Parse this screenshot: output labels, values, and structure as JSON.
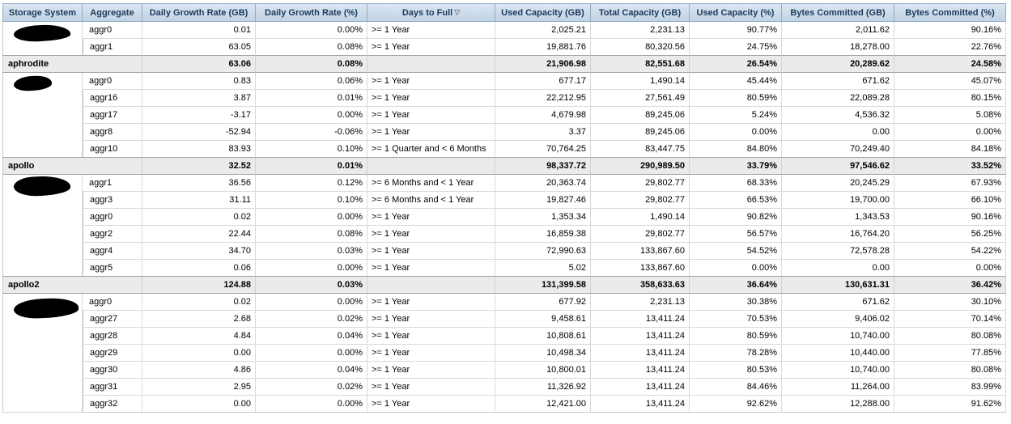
{
  "table": {
    "columns": [
      {
        "label": "Storage System"
      },
      {
        "label": "Aggregate"
      },
      {
        "label": "Daily Growth Rate (GB)"
      },
      {
        "label": "Daily Growth Rate (%)"
      },
      {
        "label": "Days to Full"
      },
      {
        "label": "Used Capacity (GB)"
      },
      {
        "label": "Total Capacity (GB)"
      },
      {
        "label": "Used Capacity (%)"
      },
      {
        "label": "Bytes Committed (GB)"
      },
      {
        "label": "Bytes Committed (%)"
      }
    ],
    "sort": {
      "column": "Days to Full",
      "direction": "descending",
      "icon": "▽"
    },
    "groups": [
      {
        "storage_system_redacted": true,
        "rows": [
          {
            "aggregate": "aggr0",
            "values": [
              "0.01",
              "0.00%",
              ">= 1 Year",
              "2,025.21",
              "2,231.13",
              "90.77%",
              "2,011.62",
              "90.16%"
            ]
          },
          {
            "aggregate": "aggr1",
            "values": [
              "63.05",
              "0.08%",
              ">= 1 Year",
              "19,881.76",
              "80,320.56",
              "24.75%",
              "18,278.00",
              "22.76%"
            ]
          }
        ],
        "summary": {
          "label": "aphrodite",
          "values": [
            "63.06",
            "0.08%",
            "",
            "21,906.98",
            "82,551.68",
            "26.54%",
            "20,289.62",
            "24.58%"
          ]
        }
      },
      {
        "storage_system_redacted": true,
        "rows": [
          {
            "aggregate": "aggr0",
            "values": [
              "0.83",
              "0.06%",
              ">= 1 Year",
              "677.17",
              "1,490.14",
              "45.44%",
              "671.62",
              "45.07%"
            ]
          },
          {
            "aggregate": "aggr16",
            "values": [
              "3.87",
              "0.01%",
              ">= 1 Year",
              "22,212.95",
              "27,561.49",
              "80.59%",
              "22,089.28",
              "80.15%"
            ]
          },
          {
            "aggregate": "aggr17",
            "values": [
              "-3.17",
              "0.00%",
              ">= 1 Year",
              "4,679.98",
              "89,245.06",
              "5.24%",
              "4,536.32",
              "5.08%"
            ]
          },
          {
            "aggregate": "aggr8",
            "values": [
              "-52.94",
              "-0.06%",
              ">= 1 Year",
              "3.37",
              "89,245.06",
              "0.00%",
              "0.00",
              "0.00%"
            ]
          },
          {
            "aggregate": "aggr10",
            "values": [
              "83.93",
              "0.10%",
              ">= 1 Quarter and < 6 Months",
              "70,764.25",
              "83,447.75",
              "84.80%",
              "70,249.40",
              "84.18%"
            ]
          }
        ],
        "summary": {
          "label": "apollo",
          "values": [
            "32.52",
            "0.01%",
            "",
            "98,337.72",
            "290,989.50",
            "33.79%",
            "97,546.62",
            "33.52%"
          ]
        }
      },
      {
        "storage_system_redacted": true,
        "rows": [
          {
            "aggregate": "aggr1",
            "values": [
              "36.56",
              "0.12%",
              ">= 6 Months and < 1 Year",
              "20,363.74",
              "29,802.77",
              "68.33%",
              "20,245.29",
              "67.93%"
            ]
          },
          {
            "aggregate": "aggr3",
            "values": [
              "31.11",
              "0.10%",
              ">= 6 Months and < 1 Year",
              "19,827.46",
              "29,802.77",
              "66.53%",
              "19,700.00",
              "66.10%"
            ]
          },
          {
            "aggregate": "aggr0",
            "values": [
              "0.02",
              "0.00%",
              ">= 1 Year",
              "1,353.34",
              "1,490.14",
              "90.82%",
              "1,343.53",
              "90.16%"
            ]
          },
          {
            "aggregate": "aggr2",
            "values": [
              "22.44",
              "0.08%",
              ">= 1 Year",
              "16,859.38",
              "29,802.77",
              "56.57%",
              "16,764.20",
              "56.25%"
            ]
          },
          {
            "aggregate": "aggr4",
            "values": [
              "34.70",
              "0.03%",
              ">= 1 Year",
              "72,990.63",
              "133,867.60",
              "54.52%",
              "72,578.28",
              "54.22%"
            ]
          },
          {
            "aggregate": "aggr5",
            "values": [
              "0.06",
              "0.00%",
              ">= 1 Year",
              "5.02",
              "133,867.60",
              "0.00%",
              "0.00",
              "0.00%"
            ]
          }
        ],
        "summary": {
          "label": "apollo2",
          "values": [
            "124.88",
            "0.03%",
            "",
            "131,399.58",
            "358,633.63",
            "36.64%",
            "130,631.31",
            "36.42%"
          ]
        }
      },
      {
        "storage_system_redacted": true,
        "rows": [
          {
            "aggregate": "aggr0",
            "values": [
              "0.02",
              "0.00%",
              ">= 1 Year",
              "677.92",
              "2,231.13",
              "30.38%",
              "671.62",
              "30.10%"
            ]
          },
          {
            "aggregate": "aggr27",
            "values": [
              "2.68",
              "0.02%",
              ">= 1 Year",
              "9,458.61",
              "13,411.24",
              "70.53%",
              "9,406.02",
              "70.14%"
            ]
          },
          {
            "aggregate": "aggr28",
            "values": [
              "4.84",
              "0.04%",
              ">= 1 Year",
              "10,808.61",
              "13,411.24",
              "80.59%",
              "10,740.00",
              "80.08%"
            ]
          },
          {
            "aggregate": "aggr29",
            "values": [
              "0.00",
              "0.00%",
              ">= 1 Year",
              "10,498.34",
              "13,411.24",
              "78.28%",
              "10,440.00",
              "77.85%"
            ]
          },
          {
            "aggregate": "aggr30",
            "values": [
              "4.86",
              "0.04%",
              ">= 1 Year",
              "10,800.01",
              "13,411.24",
              "80.53%",
              "10,740.00",
              "80.08%"
            ]
          },
          {
            "aggregate": "aggr31",
            "values": [
              "2.95",
              "0.02%",
              ">= 1 Year",
              "11,326.92",
              "13,411.24",
              "84.46%",
              "11,264.00",
              "83.99%"
            ]
          },
          {
            "aggregate": "aggr32",
            "values": [
              "0.00",
              "0.00%",
              ">= 1 Year",
              "12,421.00",
              "13,411.24",
              "92.62%",
              "12,288.00",
              "91.62%"
            ]
          }
        ],
        "summary": null
      }
    ]
  }
}
